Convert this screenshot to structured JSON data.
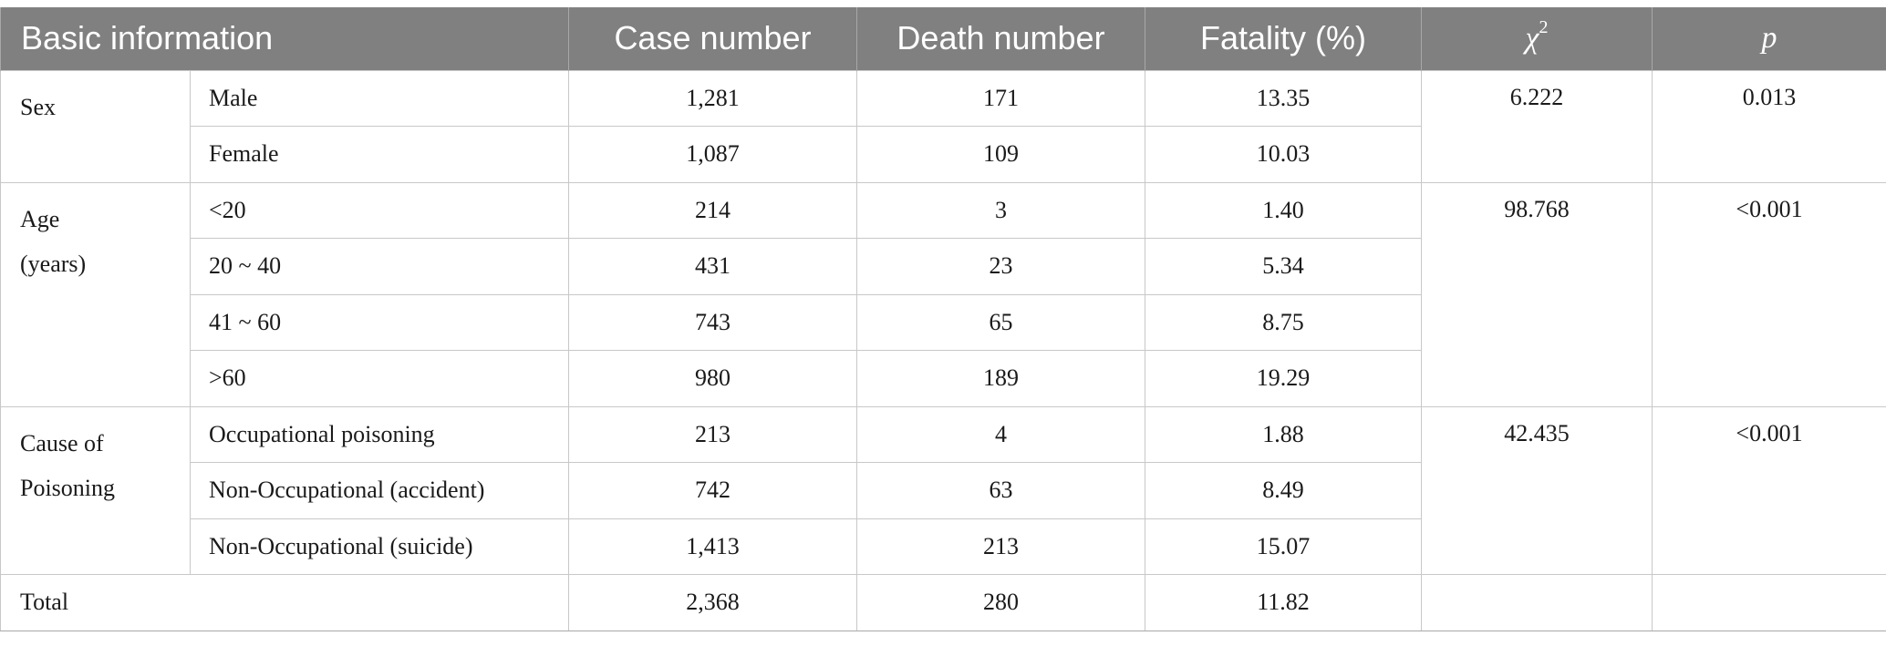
{
  "headers": {
    "basic_information": "Basic information",
    "case_number": "Case number",
    "death_number": "Death number",
    "fatality": "Fatality (%)",
    "chi_symbol": "χ",
    "chi_superscript": "2",
    "p": "p"
  },
  "groups": [
    {
      "category": "Sex",
      "chi2": "6.222",
      "p": "0.013",
      "rows": [
        {
          "label": "Male",
          "case": "1,281",
          "death": "171",
          "fatality": "13.35"
        },
        {
          "label": "Female",
          "case": "1,087",
          "death": "109",
          "fatality": "10.03"
        }
      ]
    },
    {
      "category": "Age\n(years)",
      "chi2": "98.768",
      "p": "<0.001",
      "rows": [
        {
          "label": "<20",
          "case": "214",
          "death": "3",
          "fatality": "1.40"
        },
        {
          "label": "20 ~ 40",
          "case": "431",
          "death": "23",
          "fatality": "5.34"
        },
        {
          "label": "41 ~ 60",
          "case": "743",
          "death": "65",
          "fatality": "8.75"
        },
        {
          "label": ">60",
          "case": "980",
          "death": "189",
          "fatality": "19.29"
        }
      ]
    },
    {
      "category": "Cause of\nPoisoning",
      "chi2": "42.435",
      "p": "<0.001",
      "rows": [
        {
          "label": "Occupational poisoning",
          "case": "213",
          "death": "4",
          "fatality": "1.88"
        },
        {
          "label": "Non-Occupational (accident)",
          "case": "742",
          "death": "63",
          "fatality": "8.49"
        },
        {
          "label": "Non-Occupational (suicide)",
          "case": "1,413",
          "death": "213",
          "fatality": "15.07"
        }
      ]
    }
  ],
  "total": {
    "label": "Total",
    "case": "2,368",
    "death": "280",
    "fatality": "11.82",
    "chi2": "",
    "p": ""
  }
}
